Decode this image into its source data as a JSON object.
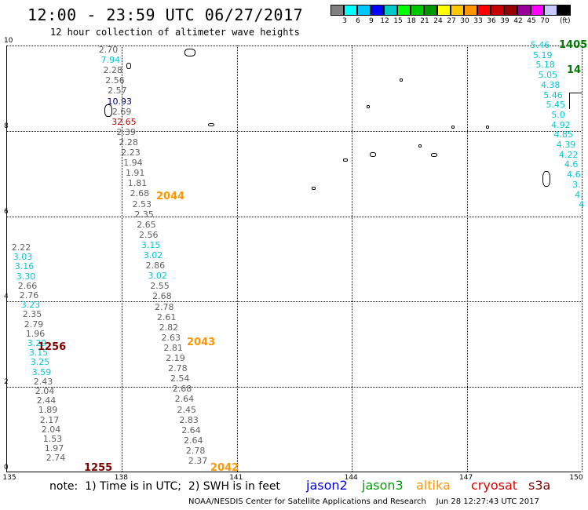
{
  "header": {
    "title": "12:00 - 23:59 UTC 06/27/2017",
    "subtitle": "12 hour collection of altimeter wave heights"
  },
  "legend": {
    "unit": "(ft)",
    "bins": [
      {
        "label": "",
        "color": "#808080"
      },
      {
        "label": "3",
        "color": "#00ffff"
      },
      {
        "label": "6",
        "color": "#00c8ff"
      },
      {
        "label": "9",
        "color": "#0000ff"
      },
      {
        "label": "12",
        "color": "#00c8c8"
      },
      {
        "label": "15",
        "color": "#00ff00"
      },
      {
        "label": "18",
        "color": "#00c800"
      },
      {
        "label": "21",
        "color": "#009600"
      },
      {
        "label": "24",
        "color": "#ffff00"
      },
      {
        "label": "27",
        "color": "#ffc800"
      },
      {
        "label": "30",
        "color": "#ff9600"
      },
      {
        "label": "33",
        "color": "#ff0000"
      },
      {
        "label": "36",
        "color": "#c80000"
      },
      {
        "label": "39",
        "color": "#960000"
      },
      {
        "label": "42",
        "color": "#960096"
      },
      {
        "label": "45",
        "color": "#ff00ff"
      },
      {
        "label": "70",
        "color": "#c8c8ff"
      },
      {
        "label": "",
        "color": "#000000"
      }
    ]
  },
  "axes": {
    "lon_ticks": [
      "135",
      "138",
      "141",
      "144",
      "147",
      "150"
    ],
    "lat_ticks": [
      "0",
      "2",
      "4",
      "6",
      "8",
      "10"
    ]
  },
  "tracks": {
    "track_a": {
      "pass_times": [
        {
          "text": "1256",
          "color": "#800000"
        },
        {
          "text": "1255",
          "color": "#800000"
        }
      ],
      "values": [
        {
          "v": "2.22",
          "c": "gray"
        },
        {
          "v": "3.03",
          "c": "cyan"
        },
        {
          "v": "3.16",
          "c": "cyan"
        },
        {
          "v": "3.30",
          "c": "cyan"
        },
        {
          "v": "2.66",
          "c": "gray"
        },
        {
          "v": "2.76",
          "c": "gray"
        },
        {
          "v": "3.23",
          "c": "cyan"
        },
        {
          "v": "2.35",
          "c": "gray"
        },
        {
          "v": "2.79",
          "c": "gray"
        },
        {
          "v": "1.96",
          "c": "gray"
        },
        {
          "v": "3.29",
          "c": "cyan"
        },
        {
          "v": "3.15",
          "c": "cyan"
        },
        {
          "v": "3.25",
          "c": "cyan"
        },
        {
          "v": "3.59",
          "c": "cyan"
        },
        {
          "v": "2.43",
          "c": "gray"
        },
        {
          "v": "2.04",
          "c": "gray"
        },
        {
          "v": "2.44",
          "c": "gray"
        },
        {
          "v": "1.89",
          "c": "gray"
        },
        {
          "v": "2.17",
          "c": "gray"
        },
        {
          "v": "2.04",
          "c": "gray"
        },
        {
          "v": "1.53",
          "c": "gray"
        },
        {
          "v": "1.97",
          "c": "gray"
        },
        {
          "v": "2.74",
          "c": "gray"
        }
      ]
    },
    "track_b": {
      "pass_times": [
        {
          "text": "2044",
          "color": "#ff9600"
        }
      ],
      "values": [
        {
          "v": "2.70",
          "c": "gray"
        },
        {
          "v": "7.94",
          "c": "cyan"
        },
        {
          "v": "2.28",
          "c": "gray"
        },
        {
          "v": "2.56",
          "c": "gray"
        },
        {
          "v": "2.57",
          "c": "gray"
        },
        {
          "v": "10.93",
          "c": "navy"
        },
        {
          "v": "2.69",
          "c": "gray"
        },
        {
          "v": "32.65",
          "c": "red"
        },
        {
          "v": "2.39",
          "c": "gray"
        },
        {
          "v": "2.28",
          "c": "gray"
        },
        {
          "v": "2.23",
          "c": "gray"
        },
        {
          "v": "1.94",
          "c": "gray"
        },
        {
          "v": "1.91",
          "c": "gray"
        },
        {
          "v": "1.81",
          "c": "gray"
        },
        {
          "v": "2.68",
          "c": "gray"
        },
        {
          "v": "2.53",
          "c": "gray"
        },
        {
          "v": "2.35",
          "c": "gray"
        },
        {
          "v": "2.65",
          "c": "gray"
        },
        {
          "v": "2.56",
          "c": "gray"
        },
        {
          "v": "3.15",
          "c": "cyan"
        },
        {
          "v": "3.02",
          "c": "cyan"
        },
        {
          "v": "2.86",
          "c": "gray"
        },
        {
          "v": "3.02",
          "c": "cyan"
        },
        {
          "v": "2.55",
          "c": "gray"
        },
        {
          "v": "2.68",
          "c": "gray"
        },
        {
          "v": "2.78",
          "c": "gray"
        },
        {
          "v": "2.61",
          "c": "gray"
        },
        {
          "v": "2.82",
          "c": "gray"
        },
        {
          "v": "2.63",
          "c": "gray"
        },
        {
          "v": "2.81",
          "c": "gray"
        },
        {
          "v": "2.19",
          "c": "gray"
        },
        {
          "v": "2.78",
          "c": "gray"
        },
        {
          "v": "2.54",
          "c": "gray"
        },
        {
          "v": "2.68",
          "c": "gray"
        },
        {
          "v": "2.64",
          "c": "gray"
        },
        {
          "v": "2.45",
          "c": "gray"
        },
        {
          "v": "2.83",
          "c": "gray"
        },
        {
          "v": "2.64",
          "c": "gray"
        },
        {
          "v": "2.64",
          "c": "gray"
        },
        {
          "v": "2.78",
          "c": "gray"
        },
        {
          "v": "2.37",
          "c": "gray"
        }
      ],
      "pass_times_extra": [
        {
          "text": "2043",
          "color": "#ff9600"
        },
        {
          "text": "2042",
          "color": "#ff9600"
        }
      ]
    },
    "track_c": {
      "pass_times": [
        {
          "text": "1405",
          "color": "#007a00"
        },
        {
          "text": "14",
          "color": "#007a00"
        }
      ],
      "values": [
        {
          "v": "5.46",
          "c": "cyan"
        },
        {
          "v": "5.19",
          "c": "cyan"
        },
        {
          "v": "5.18",
          "c": "cyan"
        },
        {
          "v": "5.05",
          "c": "cyan"
        },
        {
          "v": "4.38",
          "c": "cyan"
        },
        {
          "v": "5.46",
          "c": "cyan"
        },
        {
          "v": "5.45",
          "c": "cyan"
        },
        {
          "v": "5.0",
          "c": "cyan"
        },
        {
          "v": "4.92",
          "c": "cyan"
        },
        {
          "v": "4.85",
          "c": "cyan"
        },
        {
          "v": "4.39",
          "c": "cyan"
        },
        {
          "v": "4.22",
          "c": "cyan"
        },
        {
          "v": "4.6",
          "c": "cyan"
        },
        {
          "v": "4.6",
          "c": "cyan"
        },
        {
          "v": "3.",
          "c": "cyan"
        },
        {
          "v": "4.",
          "c": "cyan"
        },
        {
          "v": "4",
          "c": "cyan"
        }
      ]
    }
  },
  "footer": {
    "note": "note:  1) Time is in UTC;  2) SWH is in feet",
    "satellites": [
      {
        "name": "jason2",
        "color": "#0000e0"
      },
      {
        "name": "jason3",
        "color": "#00a000"
      },
      {
        "name": "altika",
        "color": "#ff9600"
      },
      {
        "name": "cryosat",
        "color": "#e00000"
      },
      {
        "name": "s3a",
        "color": "#800000"
      }
    ],
    "credit": "NOAA/NESDIS Center for Satellite Applications and Research    Jun 28 12:27:43 UTC 2017"
  }
}
